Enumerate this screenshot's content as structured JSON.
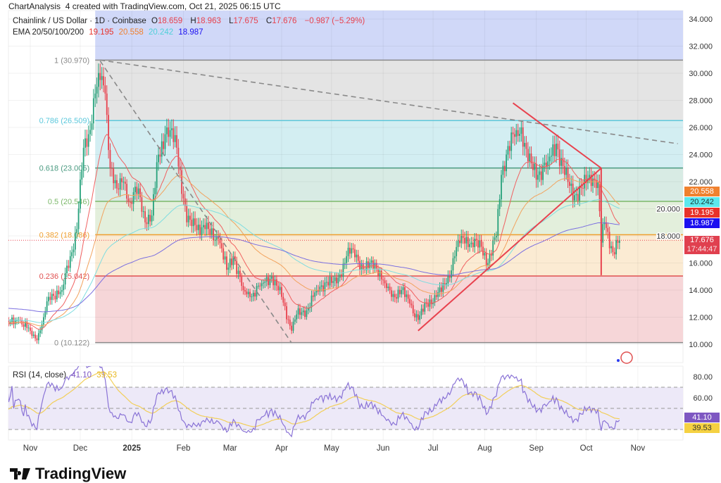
{
  "header": {
    "caption": "ChartAnalysis_4 created with TradingView.com, Oct 21, 2025 06:15 UTC"
  },
  "legend": {
    "symbol": "Chainlink / US Dollar · 1D · Coinbase",
    "o_label": "O",
    "o": "18.659",
    "h_label": "H",
    "h": "18.963",
    "l_label": "L",
    "l": "17.675",
    "c_label": "C",
    "c": "17.676",
    "change": "−0.987 (−5.29%)",
    "ema_label": "EMA 20/50/100/200",
    "ema20": "19.195",
    "ema50": "20.558",
    "ema100": "20.242",
    "ema200": "18.987",
    "rsi_label": "RSI (14, close)",
    "rsi": "41.10",
    "rsi_ma": "39.53"
  },
  "tags": {
    "ema50": {
      "text": "20.558",
      "bg": "#f0812e",
      "fg": "#ffffff",
      "value": 20.558
    },
    "ema100": {
      "text": "20.242",
      "bg": "#5ce8ee",
      "fg": "#1a3a3a",
      "value": 20.242
    },
    "ema20": {
      "text": "19.195",
      "bg": "#e8322a",
      "fg": "#ffffff",
      "value": 19.195
    },
    "ema200": {
      "text": "18.987",
      "bg": "#1c10f0",
      "fg": "#ffffff",
      "value": 18.987
    },
    "price": {
      "text": "17.676",
      "time": "17:44:47",
      "bg": "#e0404f",
      "fg": "#ffffff",
      "value": 17.676
    },
    "rsi": {
      "text": "41.10",
      "bg": "#7e57c2",
      "fg": "#ffffff",
      "value": 41.1
    },
    "rsi_ma": {
      "text": "39.53",
      "bg": "#f5d142",
      "fg": "#333333",
      "value": 39.53
    }
  },
  "branding": {
    "name": "TradingView"
  },
  "colors": {
    "up": "#26a17b",
    "down": "#e8424e",
    "ema20": "#f06060",
    "ema50": "#f2a35e",
    "ema100": "#7fdde0",
    "ema200": "#7b6fe0",
    "rsi": "#8a73d6",
    "rsi_ma": "#f2cf5a"
  },
  "chart_data": {
    "type": "candlestick",
    "title": "Chainlink / US Dollar · 1D · Coinbase",
    "x_unit": "days since 2024-10-01",
    "ylim": [
      10,
      34
    ],
    "y_ticks": [
      "34.000",
      "32.000",
      "30.000",
      "28.000",
      "26.000",
      "24.000",
      "22.000",
      "20.000",
      "18.000",
      "16.000",
      "14.000",
      "12.000",
      "10.000"
    ],
    "y_tick_values": [
      34,
      32,
      30,
      28,
      26,
      24,
      22,
      20,
      18,
      16,
      14,
      12,
      10
    ],
    "x_ticks": [
      {
        "label": "Nov",
        "day": 31
      },
      {
        "label": "Dec",
        "day": 61
      },
      {
        "label": "2025",
        "day": 92,
        "bold": true
      },
      {
        "label": "Feb",
        "day": 123
      },
      {
        "label": "Mar",
        "day": 151
      },
      {
        "label": "Apr",
        "day": 182
      },
      {
        "label": "May",
        "day": 212
      },
      {
        "label": "Jun",
        "day": 243
      },
      {
        "label": "Jul",
        "day": 273
      },
      {
        "label": "Aug",
        "day": 304
      },
      {
        "label": "Sep",
        "day": 335
      },
      {
        "label": "Oct",
        "day": 365
      },
      {
        "label": "Nov",
        "day": 396
      }
    ],
    "close_path": [
      [
        15,
        11.4
      ],
      [
        24,
        11.8
      ],
      [
        31,
        11.0
      ],
      [
        35,
        10.3
      ],
      [
        39,
        12.0
      ],
      [
        42,
        13.5
      ],
      [
        50,
        14.0
      ],
      [
        55,
        16.5
      ],
      [
        59,
        18.5
      ],
      [
        63,
        24.5
      ],
      [
        66,
        25.5
      ],
      [
        70,
        28.5
      ],
      [
        73,
        29.5
      ],
      [
        76,
        28.5
      ],
      [
        79,
        23.0
      ],
      [
        83,
        21.5
      ],
      [
        87,
        22.0
      ],
      [
        91,
        20.5
      ],
      [
        96,
        21.5
      ],
      [
        100,
        19.0
      ],
      [
        104,
        19.5
      ],
      [
        108,
        24.0
      ],
      [
        112,
        25.5
      ],
      [
        115,
        25.8
      ],
      [
        119,
        24.5
      ],
      [
        125,
        19.0
      ],
      [
        130,
        18.8
      ],
      [
        136,
        18.5
      ],
      [
        144,
        17.8
      ],
      [
        149,
        15.5
      ],
      [
        153,
        16.5
      ],
      [
        159,
        14.0
      ],
      [
        163,
        13.5
      ],
      [
        170,
        14.5
      ],
      [
        176,
        15.0
      ],
      [
        182,
        13.5
      ],
      [
        188,
        11.0
      ],
      [
        191,
        12.2
      ],
      [
        197,
        12.5
      ],
      [
        203,
        14.0
      ],
      [
        209,
        14.6
      ],
      [
        215,
        14.5
      ],
      [
        221,
        16.5
      ],
      [
        225,
        17.0
      ],
      [
        231,
        15.5
      ],
      [
        238,
        16.0
      ],
      [
        244,
        14.5
      ],
      [
        248,
        13.5
      ],
      [
        254,
        14.0
      ],
      [
        259,
        13.0
      ],
      [
        264,
        11.8
      ],
      [
        269,
        13.0
      ],
      [
        275,
        13.5
      ],
      [
        281,
        14.5
      ],
      [
        286,
        16.5
      ],
      [
        290,
        18.0
      ],
      [
        296,
        17.5
      ],
      [
        302,
        17.2
      ],
      [
        306,
        16.0
      ],
      [
        311,
        18.0
      ],
      [
        314,
        22.5
      ],
      [
        317,
        24.0
      ],
      [
        323,
        25.8
      ],
      [
        326,
        26.0
      ],
      [
        330,
        23.5
      ],
      [
        336,
        22.5
      ],
      [
        342,
        23.5
      ],
      [
        347,
        24.8
      ],
      [
        352,
        22.5
      ],
      [
        358,
        21.0
      ],
      [
        363,
        21.5
      ],
      [
        367,
        22.5
      ],
      [
        372,
        22.0
      ],
      [
        374,
        17.5
      ],
      [
        376,
        19.0
      ],
      [
        381,
        16.8
      ],
      [
        385,
        17.676
      ]
    ],
    "ema_seeds": {
      "ema20": 11.5,
      "ema50": 11.6,
      "ema100": 11.8,
      "ema200": 12.7
    },
    "fib": {
      "start_day": 70,
      "levels": [
        {
          "label": "1 (30.970)",
          "value": 30.97,
          "color": "#8a8a8a",
          "fill": "#e4e4e4"
        },
        {
          "label": "0.786 (26.509)",
          "value": 26.509,
          "color": "#5cc8dc",
          "fill": "#d3eef2"
        },
        {
          "label": "0.618 (23.005)",
          "value": 23.005,
          "color": "#4a9a80",
          "fill": "#d8ebe4"
        },
        {
          "label": "0.5 (20.546)",
          "value": 20.546,
          "color": "#7cb86a",
          "fill": "#e3efdc"
        },
        {
          "label": "0.382 (18.086)",
          "value": 18.086,
          "color": "#f0a030",
          "fill": "#fbebd3"
        },
        {
          "label": "0.236 (15.042)",
          "value": 15.042,
          "color": "#e05050",
          "fill": "#f6d6d8"
        },
        {
          "label": "0 (10.122)",
          "value": 10.122,
          "color": "#8a8a8a",
          "fill": null
        }
      ],
      "above_fill": "#d0d8f8"
    },
    "trendlines": [
      {
        "from": [
          73,
          30.97
        ],
        "to": [
          420,
          24.8
        ],
        "color": "#8a8a8a",
        "dashed": true
      },
      {
        "from": [
          73,
          30.9
        ],
        "to": [
          188,
          10.1
        ],
        "color": "#8a8a8a",
        "dashed": true
      },
      {
        "from": [
          264,
          11.0
        ],
        "to": [
          374,
          23.0
        ],
        "color": "#e8424e",
        "dashed": false
      },
      {
        "from": [
          321,
          27.8
        ],
        "to": [
          374,
          23.0
        ],
        "color": "#e8424e",
        "dashed": false
      },
      {
        "from": [
          374,
          23.0
        ],
        "to": [
          374,
          15.1
        ],
        "color": "#e8424e",
        "dashed": false
      }
    ],
    "rsi": {
      "period": 14,
      "ma_period": 14,
      "ylim": [
        20,
        90
      ],
      "y_ticks": [
        "80.00",
        "60.00"
      ],
      "y_tick_values": [
        80,
        60
      ],
      "bands": [
        70,
        50,
        30
      ]
    }
  }
}
